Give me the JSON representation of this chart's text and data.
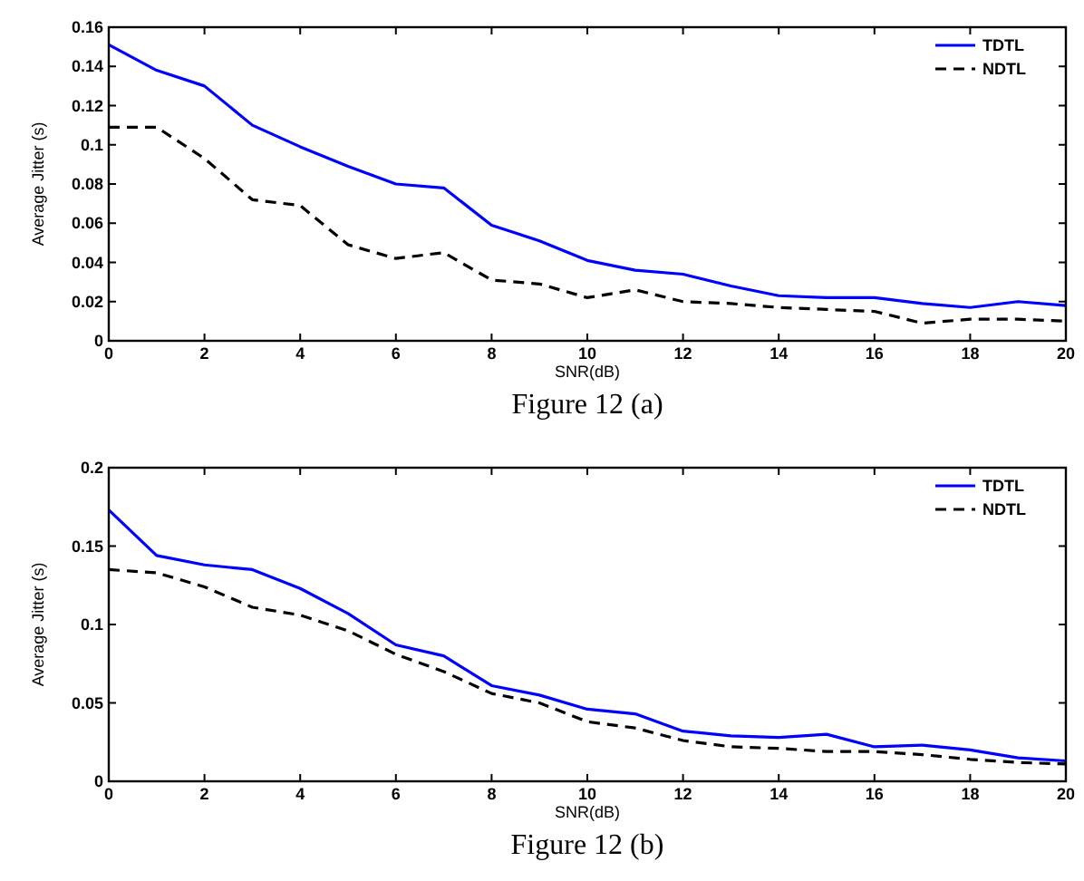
{
  "chart_data": [
    {
      "type": "line",
      "title": "Figure 12 (a)",
      "xlabel": "SNR(dB)",
      "ylabel": "Average Jitter (s)",
      "x": [
        0,
        1,
        2,
        3,
        4,
        5,
        6,
        7,
        8,
        9,
        10,
        11,
        12,
        13,
        14,
        15,
        16,
        17,
        18,
        19,
        20
      ],
      "xlim": [
        0,
        20
      ],
      "xticks": [
        0,
        2,
        4,
        6,
        8,
        10,
        12,
        14,
        16,
        18,
        20
      ],
      "ylim": [
        0,
        0.16
      ],
      "yticks": [
        0,
        0.02,
        0.04,
        0.06,
        0.08,
        0.1,
        0.12,
        0.14,
        0.16
      ],
      "legend": "top right",
      "grid": false,
      "series": [
        {
          "name": "TDTL",
          "color": "#0000ff",
          "line_style": "solid",
          "values": [
            0.151,
            0.138,
            0.13,
            0.11,
            0.099,
            0.089,
            0.08,
            0.078,
            0.059,
            0.051,
            0.041,
            0.036,
            0.034,
            0.028,
            0.023,
            0.022,
            0.022,
            0.019,
            0.017,
            0.02,
            0.018
          ]
        },
        {
          "name": "NDTL",
          "color": "#000000",
          "line_style": "dashed",
          "values": [
            0.109,
            0.109,
            0.093,
            0.072,
            0.069,
            0.049,
            0.042,
            0.045,
            0.031,
            0.029,
            0.022,
            0.026,
            0.02,
            0.019,
            0.017,
            0.016,
            0.015,
            0.009,
            0.011,
            0.011,
            0.01
          ]
        }
      ]
    },
    {
      "type": "line",
      "title": "Figure 12 (b)",
      "xlabel": "SNR(dB)",
      "ylabel": "Average Jitter (s)",
      "x": [
        0,
        1,
        2,
        3,
        4,
        5,
        6,
        7,
        8,
        9,
        10,
        11,
        12,
        13,
        14,
        15,
        16,
        17,
        18,
        19,
        20
      ],
      "xlim": [
        0,
        20
      ],
      "xticks": [
        0,
        2,
        4,
        6,
        8,
        10,
        12,
        14,
        16,
        18,
        20
      ],
      "ylim": [
        0,
        0.2
      ],
      "yticks": [
        0,
        0.05,
        0.1,
        0.15,
        0.2
      ],
      "legend": "top right",
      "grid": false,
      "series": [
        {
          "name": "TDTL",
          "color": "#0000ff",
          "line_style": "solid",
          "values": [
            0.173,
            0.144,
            0.138,
            0.135,
            0.123,
            0.107,
            0.087,
            0.08,
            0.061,
            0.055,
            0.046,
            0.043,
            0.032,
            0.029,
            0.028,
            0.03,
            0.022,
            0.023,
            0.02,
            0.015,
            0.013
          ]
        },
        {
          "name": "NDTL",
          "color": "#000000",
          "line_style": "dashed",
          "values": [
            0.135,
            0.133,
            0.124,
            0.111,
            0.106,
            0.096,
            0.081,
            0.07,
            0.056,
            0.05,
            0.038,
            0.034,
            0.026,
            0.022,
            0.021,
            0.019,
            0.019,
            0.017,
            0.014,
            0.012,
            0.011
          ]
        }
      ]
    }
  ]
}
